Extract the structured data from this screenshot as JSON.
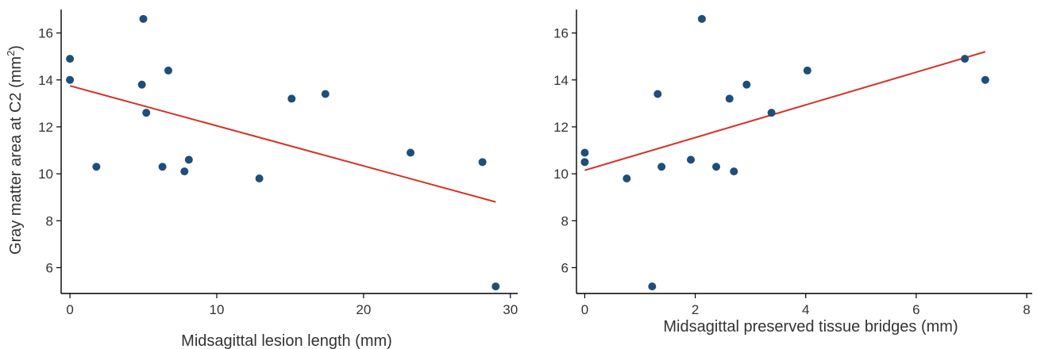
{
  "chart_data": [
    {
      "type": "scatter",
      "xlabel": "Midsagittal lesion length (mm)",
      "ylabel": "Gray matter area at C2 (mm²)",
      "ylabel_main": "Gray matter area at C2 (mm",
      "ylabel_sup": "2",
      "ylabel_end": ")",
      "xlim": [
        -0.6,
        30.5
      ],
      "ylim": [
        4.9,
        17.0
      ],
      "xticks": [
        0,
        10,
        20,
        30
      ],
      "yticks": [
        6,
        8,
        10,
        12,
        14,
        16
      ],
      "grid": false,
      "points": [
        {
          "x": 0.0,
          "y": 14.9
        },
        {
          "x": 0.0,
          "y": 14.0
        },
        {
          "x": 1.8,
          "y": 10.3
        },
        {
          "x": 4.9,
          "y": 13.8
        },
        {
          "x": 5.0,
          "y": 16.6
        },
        {
          "x": 5.2,
          "y": 12.6
        },
        {
          "x": 6.3,
          "y": 10.3
        },
        {
          "x": 6.7,
          "y": 14.4
        },
        {
          "x": 7.8,
          "y": 10.1
        },
        {
          "x": 8.1,
          "y": 10.6
        },
        {
          "x": 12.9,
          "y": 9.8
        },
        {
          "x": 15.1,
          "y": 13.2
        },
        {
          "x": 17.4,
          "y": 13.4
        },
        {
          "x": 23.2,
          "y": 10.9
        },
        {
          "x": 28.1,
          "y": 10.5
        },
        {
          "x": 29.0,
          "y": 5.2
        }
      ],
      "fit_line": {
        "x": [
          0.0,
          29.0
        ],
        "y": [
          13.75,
          8.8
        ]
      },
      "fit_color": "#d73027",
      "point_color": "#1f4e79"
    },
    {
      "type": "scatter",
      "xlabel": "Midsagittal preserved tissue bridges (mm)",
      "ylabel": "",
      "xlim": [
        -0.15,
        8.1
      ],
      "ylim": [
        4.9,
        17.0
      ],
      "xticks": [
        0,
        2,
        4,
        6,
        8
      ],
      "yticks": [
        6,
        8,
        10,
        12,
        14,
        16
      ],
      "grid": false,
      "points": [
        {
          "x": 0.0,
          "y": 10.9
        },
        {
          "x": 0.0,
          "y": 10.5
        },
        {
          "x": 0.76,
          "y": 9.8
        },
        {
          "x": 1.22,
          "y": 5.2
        },
        {
          "x": 1.32,
          "y": 13.4
        },
        {
          "x": 1.39,
          "y": 10.3
        },
        {
          "x": 1.92,
          "y": 10.6
        },
        {
          "x": 2.12,
          "y": 16.6
        },
        {
          "x": 2.38,
          "y": 10.3
        },
        {
          "x": 2.62,
          "y": 13.2
        },
        {
          "x": 2.7,
          "y": 10.1
        },
        {
          "x": 2.93,
          "y": 13.8
        },
        {
          "x": 3.38,
          "y": 12.6
        },
        {
          "x": 4.03,
          "y": 14.4
        },
        {
          "x": 6.88,
          "y": 14.9
        },
        {
          "x": 7.25,
          "y": 14.0
        }
      ],
      "fit_line": {
        "x": [
          0.0,
          7.25
        ],
        "y": [
          10.15,
          15.2
        ]
      },
      "fit_color": "#d73027",
      "point_color": "#1f4e79"
    }
  ]
}
